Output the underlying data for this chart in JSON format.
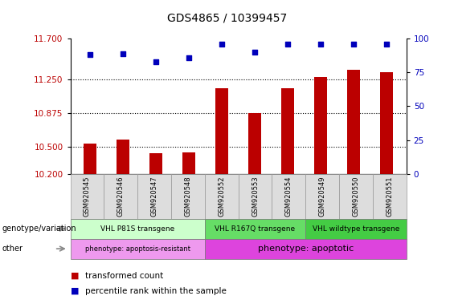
{
  "title": "GDS4865 / 10399457",
  "samples": [
    "GSM920545",
    "GSM920546",
    "GSM920547",
    "GSM920548",
    "GSM920552",
    "GSM920553",
    "GSM920554",
    "GSM920549",
    "GSM920550",
    "GSM920551"
  ],
  "transformed_count": [
    10.54,
    10.58,
    10.43,
    10.44,
    11.15,
    10.875,
    11.15,
    11.27,
    11.35,
    11.33
  ],
  "percentile_rank": [
    88,
    89,
    83,
    86,
    96,
    90,
    96,
    96,
    96,
    96
  ],
  "ylim_left": [
    10.2,
    11.7
  ],
  "ylim_right": [
    0,
    100
  ],
  "yticks_left": [
    10.2,
    10.5,
    10.875,
    11.25,
    11.7
  ],
  "yticks_right": [
    0,
    25,
    50,
    75,
    100
  ],
  "bar_color": "#bb0000",
  "dot_color": "#0000bb",
  "bg_color": "#ffffff",
  "genotype_groups": [
    {
      "label": "VHL P81S transgene",
      "start": 0,
      "end": 4,
      "color": "#ccffcc"
    },
    {
      "label": "VHL R167Q transgene",
      "start": 4,
      "end": 7,
      "color": "#66dd66"
    },
    {
      "label": "VHL wildtype transgene",
      "start": 7,
      "end": 10,
      "color": "#44cc44"
    }
  ],
  "other_groups": [
    {
      "label": "phenotype: apoptosis-resistant",
      "start": 0,
      "end": 4,
      "color": "#ee99ee"
    },
    {
      "label": "phenotype: apoptotic",
      "start": 4,
      "end": 10,
      "color": "#dd44dd"
    }
  ],
  "legend_bar_label": "transformed count",
  "legend_dot_label": "percentile rank within the sample"
}
